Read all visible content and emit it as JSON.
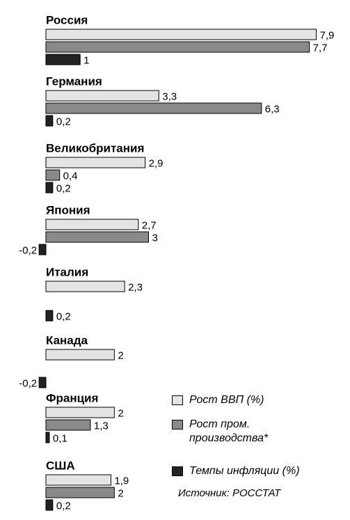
{
  "chart_data": {
    "type": "hbar",
    "categories": [
      "Россия",
      "Германия",
      "Великобритания",
      "Япония",
      "Италия",
      "Канада",
      "Франция",
      "США"
    ],
    "series": [
      {
        "name": "Рост ВВП (%)",
        "color": "#e4e4e4",
        "values": [
          7.9,
          3.3,
          2.9,
          2.7,
          2.3,
          2,
          2,
          1.9
        ],
        "value_labels": [
          "7,9",
          "3,3",
          "2,9",
          "2,7",
          "2,3",
          "2",
          "2",
          "1,9"
        ]
      },
      {
        "name": "Рост пром. производства*",
        "color": "#8a8a8a",
        "values": [
          7.7,
          6.3,
          0.4,
          3,
          null,
          null,
          1.3,
          2
        ],
        "value_labels": [
          "7,7",
          "6,3",
          "0,4",
          "3",
          null,
          null,
          "1,3",
          "2"
        ]
      },
      {
        "name": "Темпы инфляции (%)",
        "color": "#222222",
        "values": [
          1,
          0.2,
          0.2,
          -0.2,
          0.2,
          -0.2,
          0.1,
          0.2
        ],
        "value_labels": [
          "1",
          "0,2",
          "0,2",
          "-0,2",
          "0,2",
          "-0,2",
          "0,1",
          "0,2"
        ]
      }
    ],
    "xlim": [
      -0.5,
      8.5
    ],
    "source": "Источник: РОССТАТ"
  }
}
